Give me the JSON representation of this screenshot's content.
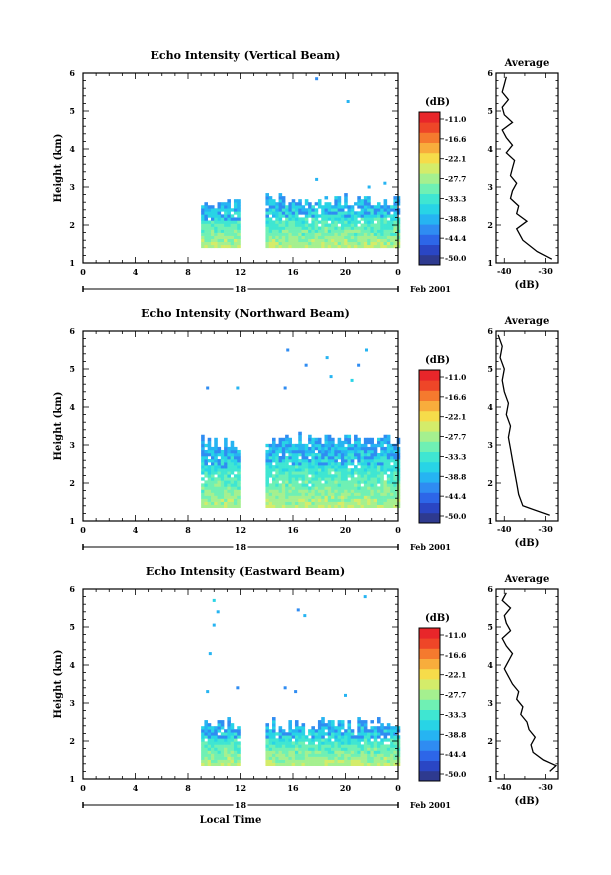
{
  "chart_data": [
    {
      "type": "heatmap",
      "title": "Echo Intensity (Vertical Beam)",
      "ylabel": "Height (km)",
      "xlabel": "",
      "x_ticks": [
        "0",
        "4",
        "8",
        "12",
        "16",
        "20",
        "0"
      ],
      "y_ticks": [
        "1",
        "2",
        "3",
        "4",
        "5",
        "6"
      ],
      "date_label": "18",
      "month_label": "Feb 2001",
      "xlim": [
        0,
        24
      ],
      "ylim": [
        1,
        6
      ],
      "colorbar": {
        "unit": "(dB)",
        "tick_labels": [
          "-11.0",
          "-16.6",
          "-22.1",
          "-27.7",
          "-33.3",
          "-38.8",
          "-44.4",
          "-50.0"
        ],
        "range": [
          -53,
          -9
        ]
      },
      "echo_blocks": [
        {
          "t0": 9.0,
          "t1": 12.0,
          "h0": 1.4,
          "h1": 2.7
        },
        {
          "t0": 13.9,
          "t1": 24.0,
          "h0": 1.4,
          "h1": 2.8
        }
      ],
      "scatter_echoes": [
        {
          "t": 17.8,
          "h": 3.2
        },
        {
          "t": 21.8,
          "h": 3.0
        },
        {
          "t": 23.0,
          "h": 3.1
        },
        {
          "t": 17.8,
          "h": 5.85
        },
        {
          "t": 20.2,
          "h": 5.25
        }
      ],
      "average": {
        "title": "Average",
        "xlabel": "(dB)",
        "x_ticks": [
          "-40",
          "-30"
        ],
        "xlim": [
          -42,
          -27
        ],
        "heights": [
          1.1,
          1.3,
          1.6,
          1.9,
          2.1,
          2.3,
          2.5,
          2.7,
          2.9,
          3.1,
          3.3,
          3.5,
          3.7,
          3.9,
          4.1,
          4.3,
          4.5,
          4.7,
          4.9,
          5.1,
          5.3,
          5.5,
          5.7,
          5.9
        ],
        "values": [
          -28.5,
          -32.0,
          -35.5,
          -37.0,
          -34.5,
          -37.0,
          -36.5,
          -38.5,
          -38.0,
          -37.0,
          -38.5,
          -38.0,
          -37.5,
          -39.5,
          -38.0,
          -39.5,
          -40.5,
          -38.0,
          -40.0,
          -40.5,
          -39.0,
          -40.5,
          -40.0,
          -39.5
        ]
      }
    },
    {
      "type": "heatmap",
      "title": "Echo Intensity (Northward Beam)",
      "ylabel": "Height (km)",
      "xlabel": "",
      "x_ticks": [
        "0",
        "4",
        "8",
        "12",
        "16",
        "20",
        "0"
      ],
      "y_ticks": [
        "1",
        "2",
        "3",
        "4",
        "5",
        "6"
      ],
      "date_label": "18",
      "month_label": "Feb 2001",
      "xlim": [
        0,
        24
      ],
      "ylim": [
        1,
        6
      ],
      "colorbar": {
        "unit": "(dB)",
        "tick_labels": [
          "-11.0",
          "-16.6",
          "-22.1",
          "-27.7",
          "-33.3",
          "-38.8",
          "-44.4",
          "-50.0"
        ],
        "range": [
          -53,
          -9
        ]
      },
      "echo_blocks": [
        {
          "t0": 9.0,
          "t1": 12.0,
          "h0": 1.35,
          "h1": 3.2
        },
        {
          "t0": 13.9,
          "t1": 24.0,
          "h0": 1.35,
          "h1": 3.3
        }
      ],
      "scatter_echoes": [
        {
          "t": 9.5,
          "h": 4.5
        },
        {
          "t": 11.8,
          "h": 4.5
        },
        {
          "t": 15.4,
          "h": 4.5
        },
        {
          "t": 15.6,
          "h": 5.5
        },
        {
          "t": 17.0,
          "h": 5.1
        },
        {
          "t": 18.6,
          "h": 5.3
        },
        {
          "t": 18.9,
          "h": 4.8
        },
        {
          "t": 20.5,
          "h": 4.7
        },
        {
          "t": 21.0,
          "h": 5.1
        },
        {
          "t": 21.6,
          "h": 5.5
        }
      ],
      "average": {
        "title": "Average",
        "xlabel": "(dB)",
        "x_ticks": [
          "-40",
          "-30"
        ],
        "xlim": [
          -42,
          -27
        ],
        "heights": [
          1.15,
          1.4,
          1.7,
          2.0,
          2.3,
          2.6,
          2.9,
          3.2,
          3.5,
          3.8,
          4.1,
          4.4,
          4.7,
          5.0,
          5.3,
          5.6,
          5.9
        ],
        "values": [
          -29.0,
          -35.5,
          -36.5,
          -37.0,
          -37.5,
          -38.0,
          -38.5,
          -39.0,
          -38.5,
          -39.5,
          -39.0,
          -40.0,
          -40.5,
          -40.0,
          -41.0,
          -40.5,
          -41.5
        ]
      }
    },
    {
      "type": "heatmap",
      "title": "Echo Intensity (Eastward Beam)",
      "ylabel": "Height (km)",
      "xlabel": "Local Time",
      "x_ticks": [
        "0",
        "4",
        "8",
        "12",
        "16",
        "20",
        "0"
      ],
      "y_ticks": [
        "1",
        "2",
        "3",
        "4",
        "5",
        "6"
      ],
      "date_label": "18",
      "month_label": "Feb 2001",
      "xlim": [
        0,
        24
      ],
      "ylim": [
        1,
        6
      ],
      "colorbar": {
        "unit": "(dB)",
        "tick_labels": [
          "-11.0",
          "-16.6",
          "-22.1",
          "-27.7",
          "-33.3",
          "-38.8",
          "-44.4",
          "-50.0"
        ],
        "range": [
          -53,
          -9
        ]
      },
      "echo_blocks": [
        {
          "t0": 9.0,
          "t1": 12.0,
          "h0": 1.35,
          "h1": 2.6
        },
        {
          "t0": 13.9,
          "t1": 24.0,
          "h0": 1.35,
          "h1": 2.6
        }
      ],
      "scatter_echoes": [
        {
          "t": 9.5,
          "h": 3.3
        },
        {
          "t": 11.8,
          "h": 3.4
        },
        {
          "t": 15.4,
          "h": 3.4
        },
        {
          "t": 16.2,
          "h": 3.3
        },
        {
          "t": 20.0,
          "h": 3.2
        },
        {
          "t": 10.0,
          "h": 5.7
        },
        {
          "t": 10.3,
          "h": 5.4
        },
        {
          "t": 10.0,
          "h": 5.05
        },
        {
          "t": 9.7,
          "h": 4.3
        },
        {
          "t": 16.4,
          "h": 5.45
        },
        {
          "t": 16.9,
          "h": 5.3
        },
        {
          "t": 21.5,
          "h": 5.8
        }
      ],
      "average": {
        "title": "Average",
        "xlabel": "(dB)",
        "x_ticks": [
          "-40",
          "-30"
        ],
        "xlim": [
          -42,
          -27
        ],
        "heights": [
          1.2,
          1.35,
          1.5,
          1.7,
          1.9,
          2.1,
          2.3,
          2.5,
          2.7,
          2.9,
          3.1,
          3.3,
          3.5,
          3.7,
          3.9,
          4.1,
          4.3,
          4.5,
          4.7,
          4.9,
          5.1,
          5.3,
          5.5,
          5.7,
          5.9
        ],
        "values": [
          -29.0,
          -27.5,
          -30.5,
          -33.0,
          -33.5,
          -32.5,
          -34.0,
          -34.5,
          -36.0,
          -35.5,
          -37.0,
          -36.5,
          -38.0,
          -39.0,
          -40.0,
          -39.0,
          -38.0,
          -39.5,
          -40.5,
          -38.5,
          -39.5,
          -40.0,
          -38.5,
          -40.5,
          -39.5
        ]
      }
    }
  ],
  "colormap": [
    "#2e3a8f",
    "#2a46c4",
    "#2d66e8",
    "#2f8cf2",
    "#26b4f2",
    "#28d4e6",
    "#3fe6d2",
    "#6ff0b4",
    "#a5f08f",
    "#d4ec6a",
    "#f6dc4a",
    "#f8ad3c",
    "#f57a2e",
    "#ee4628",
    "#e8262a"
  ]
}
